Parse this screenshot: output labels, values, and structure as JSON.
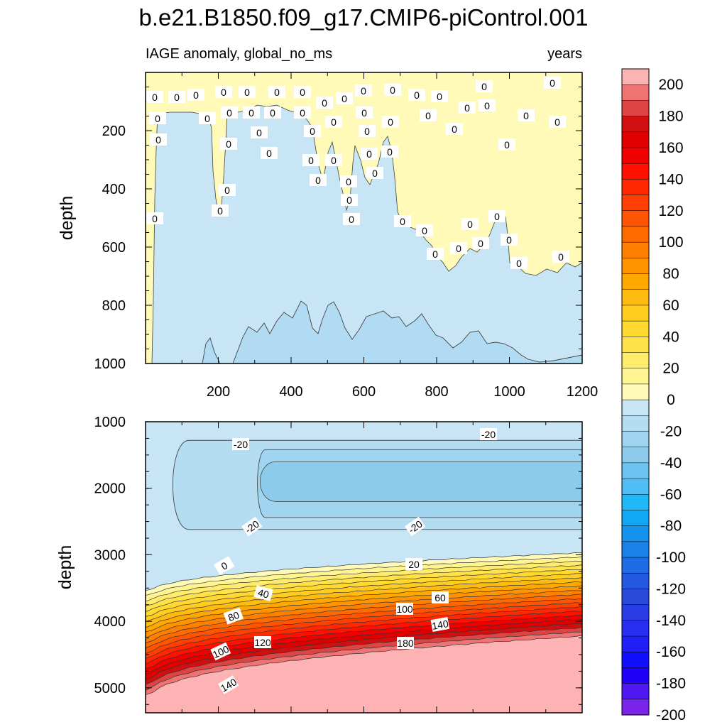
{
  "chart_data": {
    "type": "heatmap",
    "title": "b.e21.B1850.f09_g17.CMIP6-piControl.001",
    "variable_label": "IAGE anomaly, global_no_ms",
    "units_label": "years",
    "x_range": [
      0,
      1200
    ],
    "panels": [
      {
        "name": "upper",
        "ylabel": "depth",
        "y_range": [
          0,
          1000
        ],
        "y_reversed": true,
        "x_ticks": [
          200,
          400,
          600,
          800,
          1000,
          1200
        ],
        "x_tick_labels_shown": true,
        "y_ticks": [
          200,
          400,
          600,
          800,
          1000
        ],
        "contour_labels": [
          "0"
        ]
      },
      {
        "name": "lower",
        "ylabel": "depth",
        "y_range": [
          1000,
          5375
        ],
        "y_reversed": true,
        "x_ticks": [
          200,
          400,
          600,
          800,
          1000,
          1200
        ],
        "x_tick_labels_shown": false,
        "y_ticks": [
          1000,
          2000,
          3000,
          4000,
          5000
        ],
        "contour_labels": [
          "-20",
          "0",
          "20",
          "40",
          "60",
          "80",
          "100",
          "120",
          "140",
          "180"
        ]
      }
    ],
    "colorbar": {
      "levels": [
        -210,
        -200,
        -190,
        -180,
        -170,
        -160,
        -150,
        -140,
        -130,
        -120,
        -110,
        -100,
        -90,
        -80,
        -70,
        -60,
        -50,
        -40,
        -30,
        -20,
        -10,
        0,
        10,
        20,
        30,
        40,
        50,
        60,
        70,
        80,
        90,
        100,
        110,
        120,
        130,
        140,
        150,
        160,
        170,
        180,
        190,
        200,
        210
      ],
      "tick_labels": [
        "200",
        "180",
        "160",
        "140",
        "120",
        "100",
        "80",
        "60",
        "40",
        "20",
        "0",
        "-20",
        "-40",
        "-60",
        "-80",
        "-100",
        "-120",
        "-140",
        "-160",
        "-180",
        "-200"
      ],
      "colors_top_to_bottom": [
        "#fdb3b3",
        "#f07373",
        "#dd4545",
        "#d01010",
        "#e00000",
        "#f00000",
        "#ff1000",
        "#ff2800",
        "#ff4000",
        "#ff5500",
        "#ff6a00",
        "#ff7f00",
        "#ff9400",
        "#ffa800",
        "#ffbc10",
        "#ffcc20",
        "#ffd830",
        "#ffe24a",
        "#ffec6c",
        "#fff590",
        "#fffab8",
        "#c8e5f5",
        "#b4ddf2",
        "#a0d4ef",
        "#8ccbec",
        "#6ec4f0",
        "#50bdf4",
        "#20b8f8",
        "#10a8f4",
        "#1594ef",
        "#1a80ea",
        "#1f6ce6",
        "#2458e1",
        "#284ad6",
        "#2a3ce6",
        "#2a2ef0",
        "#2020f6",
        "#1010fc",
        "#2000f8",
        "#5018f0",
        "#7a24e8"
      ]
    }
  }
}
